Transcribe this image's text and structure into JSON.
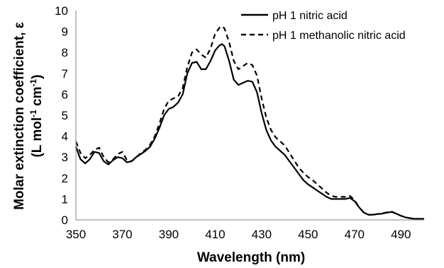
{
  "chart_data": {
    "type": "line",
    "xlabel": "Wavelength (nm)",
    "ylabel_line1": "Molar extinction coefficient, ε",
    "ylabel_line2_prefix": "(L mol",
    "ylabel_line2_sup1": "-1",
    "ylabel_line2_mid": " cm",
    "ylabel_line2_sup2": "-1",
    "ylabel_line2_suffix": ")",
    "xlim": [
      350,
      500
    ],
    "ylim": [
      0,
      10
    ],
    "x_ticks": [
      350,
      370,
      390,
      410,
      430,
      450,
      470,
      490
    ],
    "y_ticks": [
      0,
      1,
      2,
      3,
      4,
      5,
      6,
      7,
      8,
      9,
      10
    ],
    "grid": false,
    "legend_position": "top-right",
    "series": [
      {
        "name": "pH 1 nitric acid",
        "style": "solid",
        "color": "#000000",
        "x": [
          350,
          352,
          354,
          356,
          358,
          360,
          362,
          364,
          366,
          368,
          370,
          372,
          374,
          376,
          378,
          380,
          382,
          384,
          386,
          388,
          390,
          392,
          394,
          396,
          398,
          400,
          402,
          404,
          406,
          408,
          410,
          412,
          413,
          414,
          416,
          418,
          420,
          422,
          424,
          426,
          428,
          430,
          432,
          434,
          436,
          438,
          440,
          442,
          444,
          446,
          448,
          450,
          452,
          454,
          456,
          458,
          460,
          462,
          464,
          466,
          468,
          470,
          472,
          474,
          476,
          478,
          480,
          482,
          484,
          486,
          488,
          490,
          492,
          494,
          496,
          498,
          500
        ],
        "y": [
          3.5,
          2.9,
          2.7,
          2.9,
          3.25,
          3.2,
          2.8,
          2.65,
          2.85,
          3.0,
          2.95,
          2.75,
          2.8,
          3.0,
          3.15,
          3.3,
          3.5,
          3.9,
          4.4,
          5.0,
          5.3,
          5.4,
          5.6,
          6.0,
          7.0,
          7.5,
          7.55,
          7.2,
          7.2,
          7.6,
          8.1,
          8.35,
          8.4,
          8.3,
          7.6,
          6.7,
          6.45,
          6.55,
          6.65,
          6.6,
          6.1,
          5.1,
          4.3,
          3.8,
          3.5,
          3.3,
          3.1,
          2.8,
          2.5,
          2.2,
          1.9,
          1.7,
          1.55,
          1.4,
          1.25,
          1.1,
          1.0,
          1.0,
          1.0,
          1.0,
          1.05,
          0.9,
          0.6,
          0.35,
          0.25,
          0.25,
          0.28,
          0.3,
          0.35,
          0.38,
          0.3,
          0.2,
          0.12,
          0.08,
          0.05,
          0.05,
          0.05
        ]
      },
      {
        "name": "pH 1 methanolic nitric acid",
        "style": "dashed",
        "color": "#000000",
        "x": [
          350,
          352,
          354,
          356,
          358,
          360,
          362,
          364,
          366,
          368,
          370,
          372,
          374,
          376,
          378,
          380,
          382,
          384,
          386,
          388,
          390,
          392,
          394,
          396,
          398,
          400,
          402,
          404,
          406,
          408,
          410,
          412,
          413,
          414,
          416,
          418,
          420,
          422,
          424,
          426,
          428,
          430,
          432,
          434,
          436,
          438,
          440,
          442,
          444,
          446,
          448,
          450,
          452,
          454,
          456,
          458,
          460,
          462,
          464,
          466,
          468,
          470,
          472,
          474,
          476,
          478,
          480,
          482,
          484,
          486,
          488,
          490,
          492,
          494,
          496,
          498,
          500
        ],
        "y": [
          3.75,
          3.2,
          2.95,
          3.1,
          3.35,
          3.45,
          3.0,
          2.75,
          2.9,
          3.15,
          3.25,
          2.85,
          2.8,
          3.0,
          3.2,
          3.35,
          3.6,
          4.0,
          4.6,
          5.3,
          5.7,
          5.8,
          5.9,
          6.3,
          7.3,
          8.0,
          8.15,
          7.9,
          7.75,
          8.2,
          8.9,
          9.2,
          9.25,
          9.15,
          8.5,
          7.6,
          7.2,
          7.35,
          7.5,
          7.4,
          6.9,
          5.8,
          4.9,
          4.3,
          3.95,
          3.75,
          3.55,
          3.2,
          2.85,
          2.5,
          2.25,
          2.05,
          1.9,
          1.7,
          1.5,
          1.3,
          1.15,
          1.1,
          1.1,
          1.1,
          1.15,
          0.95,
          0.6,
          0.35,
          0.25,
          0.25,
          0.28,
          0.32,
          0.36,
          0.4,
          0.3,
          0.2,
          0.12,
          0.08,
          0.05,
          0.05,
          0.05
        ]
      }
    ]
  }
}
